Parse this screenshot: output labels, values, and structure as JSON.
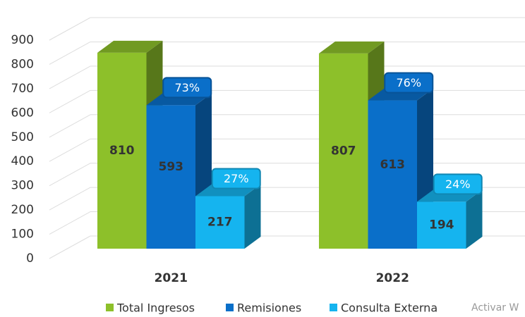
{
  "chart_data": {
    "type": "bar3d",
    "categories": [
      "2021",
      "2022"
    ],
    "series": [
      {
        "name": "Total Ingresos",
        "color": "#8dc02a",
        "values": [
          810,
          807
        ]
      },
      {
        "name": "Remisiones",
        "color": "#0a6fc9",
        "values": [
          593,
          613
        ],
        "share_labels": [
          "73%",
          "76%"
        ]
      },
      {
        "name": "Consulta Externa",
        "color": "#15b4ef",
        "values": [
          217,
          194
        ],
        "share_labels": [
          "27%",
          "24%"
        ]
      }
    ],
    "ylim": [
      0,
      900
    ],
    "yticks": [
      0,
      100,
      200,
      300,
      400,
      500,
      600,
      700,
      800,
      900
    ],
    "grid": true,
    "legend": "bottom",
    "watermark": "Activar W"
  }
}
